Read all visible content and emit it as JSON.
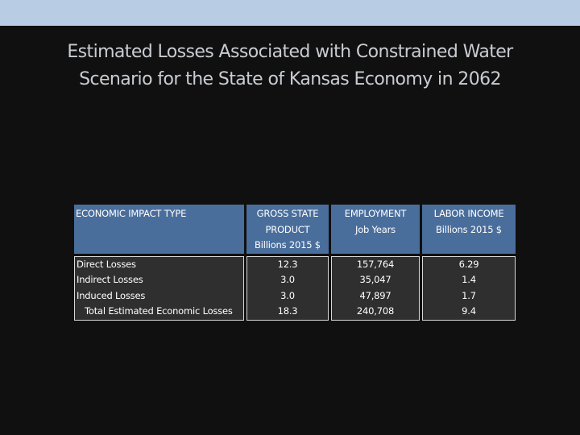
{
  "title": {
    "line1": "Estimated Losses Associated with Constrained Water",
    "line2": "Scenario for the State of Kansas Economy in 2062"
  },
  "colors": {
    "top_band": "#b8cce4",
    "background": "#101010",
    "header_fill": "#4a6e9c",
    "body_fill": "#2f2f2f"
  },
  "table": {
    "headers": [
      [
        "ECONOMIC IMPACT TYPE"
      ],
      [
        "GROSS STATE",
        "PRODUCT",
        "Billions 2015 $"
      ],
      [
        "EMPLOYMENT",
        "Job Years"
      ],
      [
        "LABOR INCOME",
        "Billions 2015 $"
      ]
    ],
    "row_labels": [
      "Direct Losses",
      "Indirect Losses",
      "Induced Losses",
      "Total Estimated Economic Losses"
    ],
    "gross_state_product": [
      "12.3",
      "3.0",
      "3.0",
      "18.3"
    ],
    "employment": [
      "157,764",
      "35,047",
      "47,897",
      "240,708"
    ],
    "labor_income": [
      "6.29",
      "1.4",
      "1.7",
      "9.4"
    ]
  }
}
